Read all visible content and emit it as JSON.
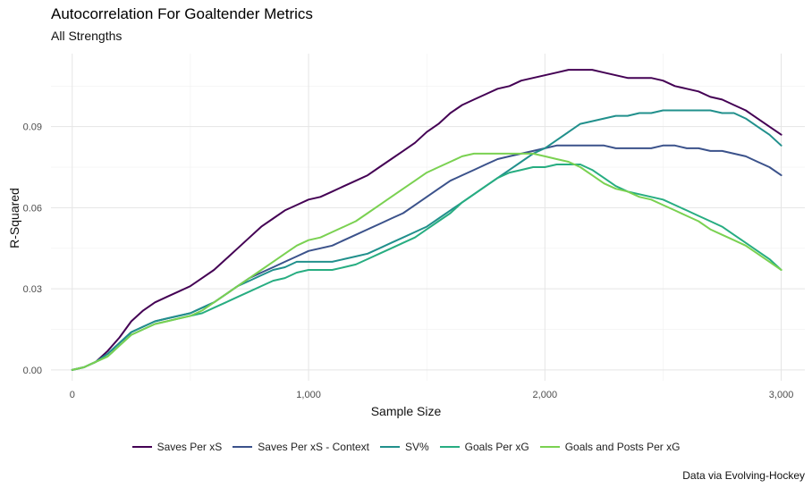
{
  "title": "Autocorrelation For Goaltender Metrics",
  "subtitle": "All Strengths",
  "caption": "Data via Evolving-Hockey",
  "chart_data": {
    "type": "line",
    "xlabel": "Sample Size",
    "ylabel": "R-Squared",
    "xlim": [
      -90,
      3100
    ],
    "ylim": [
      -0.004,
      0.117
    ],
    "xticks": [
      0,
      1000,
      2000,
      3000
    ],
    "xtick_labels": [
      "0",
      "1,000",
      "2,000",
      "3,000"
    ],
    "yticks": [
      0.0,
      0.03,
      0.06,
      0.09
    ],
    "ytick_labels": [
      "0.00",
      "0.03",
      "0.06",
      "0.09"
    ],
    "grid": true,
    "legend_position": "bottom",
    "series": [
      {
        "name": "Saves Per xS",
        "color": "#440154",
        "x": [
          0,
          50,
          100,
          150,
          200,
          250,
          300,
          350,
          400,
          450,
          500,
          550,
          600,
          650,
          700,
          750,
          800,
          850,
          900,
          950,
          1000,
          1050,
          1100,
          1150,
          1200,
          1250,
          1300,
          1350,
          1400,
          1450,
          1500,
          1550,
          1600,
          1650,
          1700,
          1750,
          1800,
          1850,
          1900,
          1950,
          2000,
          2050,
          2100,
          2150,
          2200,
          2250,
          2300,
          2350,
          2400,
          2450,
          2500,
          2550,
          2600,
          2650,
          2700,
          2750,
          2800,
          2850,
          2900,
          2950,
          3000
        ],
        "y": [
          0.0,
          0.001,
          0.003,
          0.007,
          0.012,
          0.018,
          0.022,
          0.025,
          0.027,
          0.029,
          0.031,
          0.034,
          0.037,
          0.041,
          0.045,
          0.049,
          0.053,
          0.056,
          0.059,
          0.061,
          0.063,
          0.064,
          0.066,
          0.068,
          0.07,
          0.072,
          0.075,
          0.078,
          0.081,
          0.084,
          0.088,
          0.091,
          0.095,
          0.098,
          0.1,
          0.102,
          0.104,
          0.105,
          0.107,
          0.108,
          0.109,
          0.11,
          0.111,
          0.111,
          0.111,
          0.11,
          0.109,
          0.108,
          0.108,
          0.108,
          0.107,
          0.105,
          0.104,
          0.103,
          0.101,
          0.1,
          0.098,
          0.096,
          0.093,
          0.09,
          0.087
        ]
      },
      {
        "name": "Saves Per xS - Context",
        "color": "#3b528b",
        "x": [
          0,
          50,
          100,
          150,
          200,
          250,
          300,
          350,
          400,
          450,
          500,
          550,
          600,
          650,
          700,
          750,
          800,
          850,
          900,
          950,
          1000,
          1050,
          1100,
          1150,
          1200,
          1250,
          1300,
          1350,
          1400,
          1450,
          1500,
          1550,
          1600,
          1650,
          1700,
          1750,
          1800,
          1850,
          1900,
          1950,
          2000,
          2050,
          2100,
          2150,
          2200,
          2250,
          2300,
          2350,
          2400,
          2450,
          2500,
          2550,
          2600,
          2650,
          2700,
          2750,
          2800,
          2850,
          2900,
          2950,
          3000
        ],
        "y": [
          0.0,
          0.001,
          0.003,
          0.006,
          0.01,
          0.014,
          0.016,
          0.018,
          0.019,
          0.02,
          0.021,
          0.023,
          0.025,
          0.028,
          0.031,
          0.034,
          0.036,
          0.038,
          0.04,
          0.042,
          0.044,
          0.045,
          0.046,
          0.048,
          0.05,
          0.052,
          0.054,
          0.056,
          0.058,
          0.061,
          0.064,
          0.067,
          0.07,
          0.072,
          0.074,
          0.076,
          0.078,
          0.079,
          0.08,
          0.081,
          0.082,
          0.083,
          0.083,
          0.083,
          0.083,
          0.083,
          0.082,
          0.082,
          0.082,
          0.082,
          0.083,
          0.083,
          0.082,
          0.082,
          0.081,
          0.081,
          0.08,
          0.079,
          0.077,
          0.075,
          0.072
        ]
      },
      {
        "name": "SV%",
        "color": "#21908c",
        "x": [
          0,
          50,
          100,
          150,
          200,
          250,
          300,
          350,
          400,
          450,
          500,
          550,
          600,
          650,
          700,
          750,
          800,
          850,
          900,
          950,
          1000,
          1050,
          1100,
          1150,
          1200,
          1250,
          1300,
          1350,
          1400,
          1450,
          1500,
          1550,
          1600,
          1650,
          1700,
          1750,
          1800,
          1850,
          1900,
          1950,
          2000,
          2050,
          2100,
          2150,
          2200,
          2250,
          2300,
          2350,
          2400,
          2450,
          2500,
          2550,
          2600,
          2650,
          2700,
          2750,
          2800,
          2850,
          2900,
          2950,
          3000
        ],
        "y": [
          0.0,
          0.001,
          0.003,
          0.006,
          0.01,
          0.014,
          0.016,
          0.018,
          0.019,
          0.02,
          0.021,
          0.023,
          0.025,
          0.028,
          0.031,
          0.033,
          0.035,
          0.037,
          0.038,
          0.04,
          0.04,
          0.04,
          0.04,
          0.041,
          0.042,
          0.043,
          0.045,
          0.047,
          0.049,
          0.051,
          0.053,
          0.056,
          0.059,
          0.062,
          0.065,
          0.068,
          0.071,
          0.074,
          0.077,
          0.08,
          0.082,
          0.085,
          0.088,
          0.091,
          0.092,
          0.093,
          0.094,
          0.094,
          0.095,
          0.095,
          0.096,
          0.096,
          0.096,
          0.096,
          0.096,
          0.095,
          0.095,
          0.093,
          0.09,
          0.087,
          0.083
        ]
      },
      {
        "name": "Goals Per xG",
        "color": "#27ad81",
        "x": [
          0,
          50,
          100,
          150,
          200,
          250,
          300,
          350,
          400,
          450,
          500,
          550,
          600,
          650,
          700,
          750,
          800,
          850,
          900,
          950,
          1000,
          1050,
          1100,
          1150,
          1200,
          1250,
          1300,
          1350,
          1400,
          1450,
          1500,
          1550,
          1600,
          1650,
          1700,
          1750,
          1800,
          1850,
          1900,
          1950,
          2000,
          2050,
          2100,
          2150,
          2200,
          2250,
          2300,
          2350,
          2400,
          2450,
          2500,
          2550,
          2600,
          2650,
          2700,
          2750,
          2800,
          2850,
          2900,
          2950,
          3000
        ],
        "y": [
          0.0,
          0.001,
          0.003,
          0.005,
          0.009,
          0.013,
          0.015,
          0.017,
          0.018,
          0.019,
          0.02,
          0.021,
          0.023,
          0.025,
          0.027,
          0.029,
          0.031,
          0.033,
          0.034,
          0.036,
          0.037,
          0.037,
          0.037,
          0.038,
          0.039,
          0.041,
          0.043,
          0.045,
          0.047,
          0.049,
          0.052,
          0.055,
          0.058,
          0.062,
          0.065,
          0.068,
          0.071,
          0.073,
          0.074,
          0.075,
          0.075,
          0.076,
          0.076,
          0.076,
          0.074,
          0.071,
          0.068,
          0.066,
          0.065,
          0.064,
          0.063,
          0.061,
          0.059,
          0.057,
          0.055,
          0.053,
          0.05,
          0.047,
          0.044,
          0.041,
          0.037
        ]
      },
      {
        "name": "Goals and Posts Per xG",
        "color": "#7ad151",
        "x": [
          0,
          50,
          100,
          150,
          200,
          250,
          300,
          350,
          400,
          450,
          500,
          550,
          600,
          650,
          700,
          750,
          800,
          850,
          900,
          950,
          1000,
          1050,
          1100,
          1150,
          1200,
          1250,
          1300,
          1350,
          1400,
          1450,
          1500,
          1550,
          1600,
          1650,
          1700,
          1750,
          1800,
          1850,
          1900,
          1950,
          2000,
          2050,
          2100,
          2150,
          2200,
          2250,
          2300,
          2350,
          2400,
          2450,
          2500,
          2550,
          2600,
          2650,
          2700,
          2750,
          2800,
          2850,
          2900,
          2950,
          3000
        ],
        "y": [
          0.0,
          0.001,
          0.003,
          0.005,
          0.009,
          0.013,
          0.015,
          0.017,
          0.018,
          0.019,
          0.02,
          0.022,
          0.025,
          0.028,
          0.031,
          0.034,
          0.037,
          0.04,
          0.043,
          0.046,
          0.048,
          0.049,
          0.051,
          0.053,
          0.055,
          0.058,
          0.061,
          0.064,
          0.067,
          0.07,
          0.073,
          0.075,
          0.077,
          0.079,
          0.08,
          0.08,
          0.08,
          0.08,
          0.08,
          0.08,
          0.079,
          0.078,
          0.077,
          0.075,
          0.072,
          0.069,
          0.067,
          0.066,
          0.064,
          0.063,
          0.061,
          0.059,
          0.057,
          0.055,
          0.052,
          0.05,
          0.048,
          0.046,
          0.043,
          0.04,
          0.037
        ]
      }
    ]
  }
}
